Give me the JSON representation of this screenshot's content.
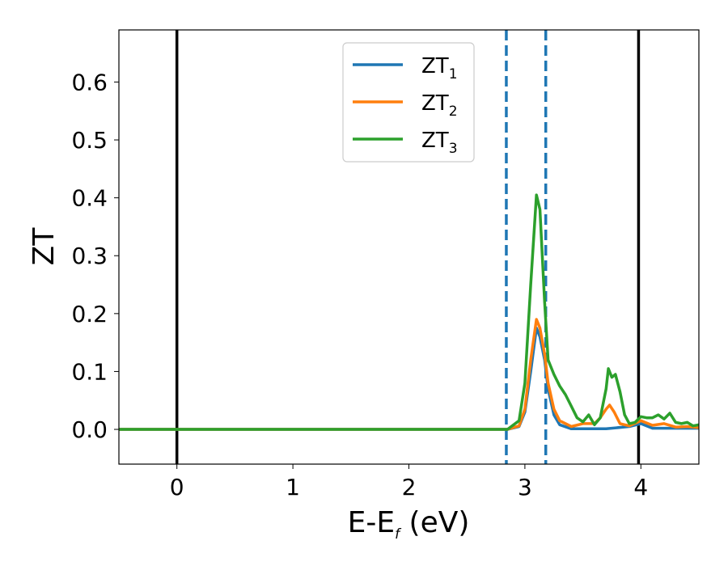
{
  "chart_data": {
    "type": "line",
    "xlabel_main": "E-E",
    "xlabel_sub": "f",
    "xlabel_unit": " (eV)",
    "ylabel": "ZT",
    "xlim": [
      -0.5,
      4.5
    ],
    "ylim": [
      -0.06,
      0.69
    ],
    "xticks": [
      0,
      1,
      2,
      3,
      4
    ],
    "yticks": [
      0.0,
      0.1,
      0.2,
      0.3,
      0.4,
      0.5,
      0.6
    ],
    "x_tick_labels": [
      "0",
      "1",
      "2",
      "3",
      "4"
    ],
    "y_tick_labels": [
      "0.0",
      "0.1",
      "0.2",
      "0.3",
      "0.4",
      "0.5",
      "0.6"
    ],
    "grid": false,
    "legend_position": "top-center",
    "vertical_lines": [
      {
        "x": 0.0,
        "style": "solid",
        "color": "#000000"
      },
      {
        "x": 3.98,
        "style": "solid",
        "color": "#000000"
      },
      {
        "x": 2.84,
        "style": "dashed",
        "color": "#1f77b4"
      },
      {
        "x": 3.18,
        "style": "dashed",
        "color": "#1f77b4"
      }
    ],
    "series": [
      {
        "name": "ZT",
        "subscript": "1",
        "color": "#1f77b4",
        "points": [
          [
            -0.5,
            0
          ],
          [
            2.85,
            0
          ],
          [
            2.95,
            0.005
          ],
          [
            3.0,
            0.03
          ],
          [
            3.05,
            0.1
          ],
          [
            3.1,
            0.175
          ],
          [
            3.13,
            0.16
          ],
          [
            3.17,
            0.12
          ],
          [
            3.2,
            0.07
          ],
          [
            3.25,
            0.025
          ],
          [
            3.3,
            0.008
          ],
          [
            3.4,
            0.001
          ],
          [
            3.7,
            0.001
          ],
          [
            3.9,
            0.005
          ],
          [
            4.0,
            0.01
          ],
          [
            4.1,
            0.002
          ],
          [
            4.3,
            0.002
          ],
          [
            4.5,
            0.002
          ]
        ]
      },
      {
        "name": "ZT",
        "subscript": "2",
        "color": "#ff7f0e",
        "points": [
          [
            -0.5,
            0
          ],
          [
            2.85,
            0
          ],
          [
            2.95,
            0.006
          ],
          [
            3.0,
            0.035
          ],
          [
            3.05,
            0.12
          ],
          [
            3.1,
            0.19
          ],
          [
            3.13,
            0.175
          ],
          [
            3.17,
            0.13
          ],
          [
            3.2,
            0.08
          ],
          [
            3.25,
            0.035
          ],
          [
            3.3,
            0.015
          ],
          [
            3.4,
            0.005
          ],
          [
            3.5,
            0.01
          ],
          [
            3.6,
            0.01
          ],
          [
            3.65,
            0.02
          ],
          [
            3.7,
            0.035
          ],
          [
            3.73,
            0.042
          ],
          [
            3.77,
            0.03
          ],
          [
            3.82,
            0.01
          ],
          [
            3.9,
            0.006
          ],
          [
            4.0,
            0.015
          ],
          [
            4.1,
            0.007
          ],
          [
            4.2,
            0.01
          ],
          [
            4.3,
            0.004
          ],
          [
            4.4,
            0.005
          ],
          [
            4.5,
            0.003
          ]
        ]
      },
      {
        "name": "ZT",
        "subscript": "3",
        "color": "#2ca02c",
        "points": [
          [
            -0.5,
            0
          ],
          [
            2.85,
            0
          ],
          [
            2.95,
            0.015
          ],
          [
            3.0,
            0.08
          ],
          [
            3.05,
            0.25
          ],
          [
            3.1,
            0.405
          ],
          [
            3.13,
            0.38
          ],
          [
            3.17,
            0.22
          ],
          [
            3.2,
            0.12
          ],
          [
            3.25,
            0.095
          ],
          [
            3.3,
            0.075
          ],
          [
            3.35,
            0.06
          ],
          [
            3.4,
            0.04
          ],
          [
            3.45,
            0.02
          ],
          [
            3.5,
            0.013
          ],
          [
            3.55,
            0.025
          ],
          [
            3.6,
            0.008
          ],
          [
            3.65,
            0.02
          ],
          [
            3.7,
            0.07
          ],
          [
            3.72,
            0.105
          ],
          [
            3.75,
            0.09
          ],
          [
            3.78,
            0.095
          ],
          [
            3.82,
            0.065
          ],
          [
            3.86,
            0.025
          ],
          [
            3.9,
            0.01
          ],
          [
            3.95,
            0.012
          ],
          [
            4.0,
            0.022
          ],
          [
            4.05,
            0.02
          ],
          [
            4.1,
            0.02
          ],
          [
            4.15,
            0.025
          ],
          [
            4.2,
            0.018
          ],
          [
            4.25,
            0.028
          ],
          [
            4.3,
            0.012
          ],
          [
            4.35,
            0.01
          ],
          [
            4.4,
            0.012
          ],
          [
            4.45,
            0.006
          ],
          [
            4.5,
            0.008
          ]
        ]
      }
    ]
  }
}
